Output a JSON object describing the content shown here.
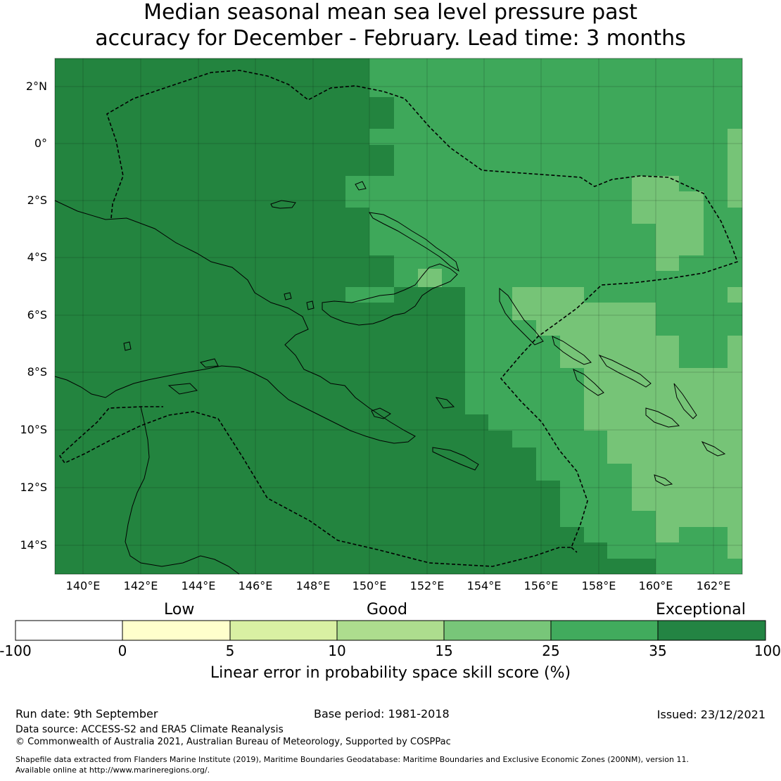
{
  "title_line1": "Median seasonal mean sea level pressure past",
  "title_line2": "accuracy for December - February. Lead time: 3 months",
  "map": {
    "lon_range": [
      139,
      163
    ],
    "lat_range": [
      -15,
      3
    ],
    "lat_ticks": [
      2,
      0,
      -2,
      -4,
      -6,
      -8,
      -10,
      -12,
      -14
    ],
    "lat_tick_labels": [
      "2°N",
      "0°",
      "2°S",
      "4°S",
      "6°S",
      "8°S",
      "10°S",
      "12°S",
      "14°S"
    ],
    "lon_ticks": [
      140,
      142,
      144,
      146,
      148,
      150,
      152,
      154,
      156,
      158,
      160,
      162
    ],
    "lon_tick_labels": [
      "140°E",
      "142°E",
      "144°E",
      "146°E",
      "148°E",
      "150°E",
      "152°E",
      "154°E",
      "156°E",
      "158°E",
      "160°E",
      "162°E"
    ],
    "grid": true,
    "colors": {
      "exceptional": "#23843f",
      "c25_35": "#3ea85a",
      "c15_25": "#76c477",
      "coast": "#000000"
    }
  },
  "colorbar": {
    "category_labels": [
      "Low",
      "Good",
      "Exceptional"
    ],
    "tick_labels": [
      "-100",
      "0",
      "5",
      "10",
      "15",
      "25",
      "35",
      "100"
    ],
    "colors": [
      "#ffffff",
      "#ffffcc",
      "#d9f0a3",
      "#addd8e",
      "#78c679",
      "#41ab5d",
      "#238443"
    ],
    "label": "Linear error in probability space skill score (%)"
  },
  "footer": {
    "run_date": "Run date: 9th September",
    "base_period": "Base period: 1981-2018",
    "issued": "Issued: 23/12/2021",
    "data_source": "Data source: ACCESS-S2 and ERA5 Climate Reanalysis",
    "copyright": "© Commonwealth of Australia 2021, Australian Bureau of Meteorology, Supported by COSPPac",
    "shapefile_line1": "Shapefile data extracted from Flanders Marine Institute (2019), Maritime Boundaries Geodatabase: Maritime Boundaries and Exclusive Economic Zones (200NM), version 11.",
    "shapefile_line2": "Available online at http://www.marineregions.org/."
  }
}
